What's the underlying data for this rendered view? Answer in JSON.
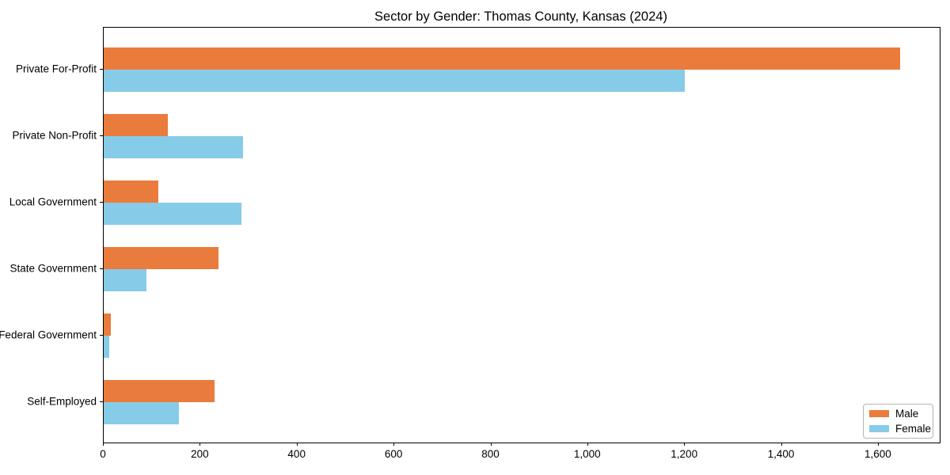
{
  "chart_data": {
    "type": "bar",
    "orientation": "horizontal",
    "title": "Sector by Gender: Thomas County, Kansas (2024)",
    "xlabel": "",
    "ylabel": "",
    "categories": [
      "Private For-Profit",
      "Private Non-Profit",
      "Local Government",
      "State Government",
      "Federal Government",
      "Self-Employed"
    ],
    "series": [
      {
        "name": "Male",
        "color": "#e97c3c",
        "values": [
          1644,
          132,
          113,
          237,
          15,
          229
        ]
      },
      {
        "name": "Female",
        "color": "#86cbe8",
        "values": [
          1200,
          287,
          285,
          88,
          12,
          156
        ]
      }
    ],
    "xlim": [
      0,
      1726
    ],
    "xticks": {
      "values": [
        0,
        200,
        400,
        600,
        800,
        1000,
        1200,
        1400,
        1600
      ],
      "labels": [
        "0",
        "200",
        "400",
        "600",
        "800",
        "1,000",
        "1,200",
        "1,400",
        "1,600"
      ]
    },
    "legend": {
      "position": "lower right",
      "entries": [
        "Male",
        "Female"
      ]
    },
    "grid": false,
    "background": "#ffffff",
    "spine_color": "#000000"
  }
}
